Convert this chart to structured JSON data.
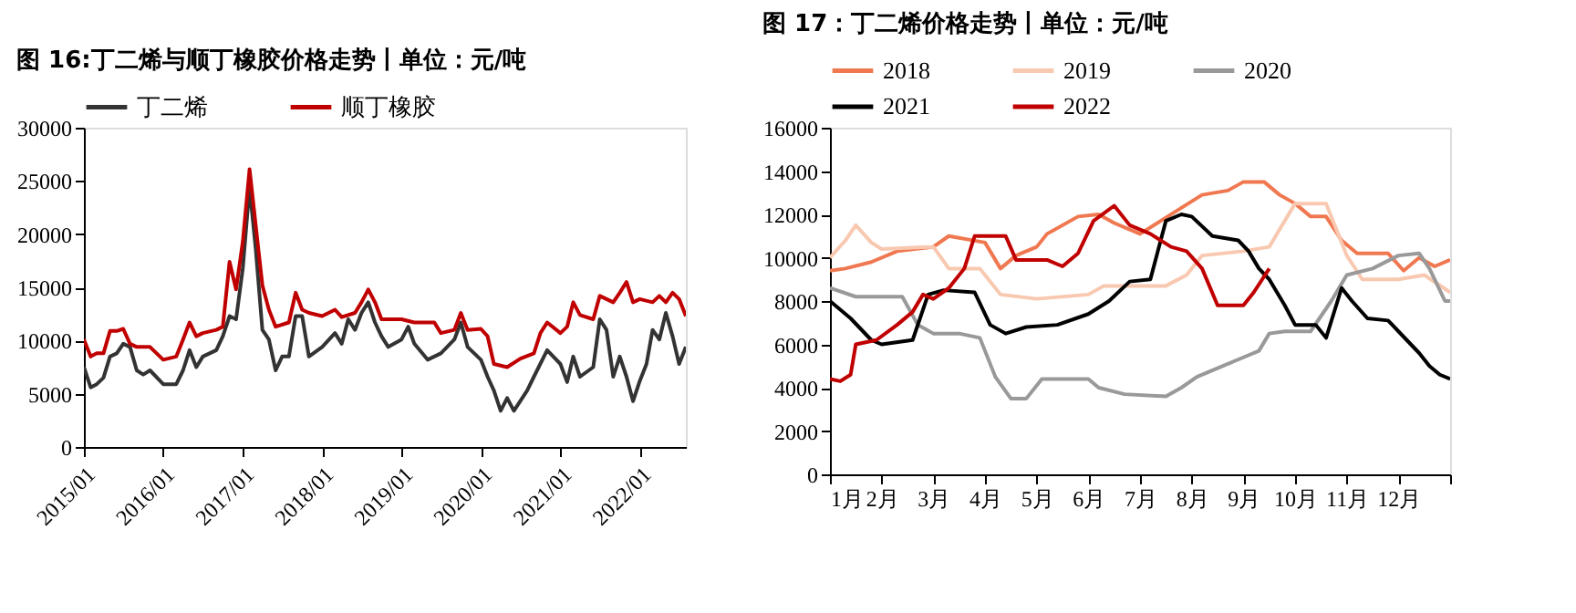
{
  "chart_data": [
    {
      "type": "line",
      "title": "图 16:丁二烯与顺丁橡胶价格走势丨单位：元/吨",
      "legend": "top",
      "grid": false,
      "marker": "none",
      "line_style": "solid",
      "xlim": [
        "2015-01",
        "2022-08"
      ],
      "xticks": [
        {
          "value": "2015-01",
          "label": "2015/01"
        },
        {
          "value": "2016-01",
          "label": "2016/01"
        },
        {
          "value": "2017-01",
          "label": "2017/01"
        },
        {
          "value": "2018-01",
          "label": "2018/01"
        },
        {
          "value": "2019-01",
          "label": "2019/01"
        },
        {
          "value": "2020-01",
          "label": "2020/01"
        },
        {
          "value": "2021-01",
          "label": "2021/01"
        },
        {
          "value": "2022-01",
          "label": "2022/01"
        }
      ],
      "ylim": [
        0,
        30000
      ],
      "yticks": [
        0,
        5000,
        10000,
        15000,
        20000,
        25000,
        30000
      ],
      "series": [
        {
          "name": "丁二烯",
          "color": "#333333",
          "x": [
            "2015-01",
            "2015-02",
            "2015-03",
            "2015-04",
            "2015-05",
            "2015-06",
            "2015-07",
            "2015-08",
            "2015-09",
            "2015-10",
            "2015-11",
            "2016-01",
            "2016-03",
            "2016-04",
            "2016-05",
            "2016-06",
            "2016-07",
            "2016-09",
            "2016-10",
            "2016-11",
            "2016-12",
            "2017-01",
            "2017-02",
            "2017-03",
            "2017-04",
            "2017-05",
            "2017-06",
            "2017-07",
            "2017-08",
            "2017-09",
            "2017-10",
            "2017-11",
            "2018-01",
            "2018-03",
            "2018-04",
            "2018-05",
            "2018-06",
            "2018-07",
            "2018-08",
            "2018-09",
            "2018-10",
            "2018-11",
            "2019-01",
            "2019-02",
            "2019-03",
            "2019-05",
            "2019-07",
            "2019-09",
            "2019-10",
            "2019-11",
            "2020-01",
            "2020-02",
            "2020-03",
            "2020-04",
            "2020-05",
            "2020-06",
            "2020-08",
            "2020-09",
            "2020-11",
            "2021-01",
            "2021-02",
            "2021-03",
            "2021-04",
            "2021-06",
            "2021-07",
            "2021-08",
            "2021-09",
            "2021-10",
            "2021-11",
            "2021-12",
            "2022-01",
            "2022-02",
            "2022-03",
            "2022-04",
            "2022-05",
            "2022-06",
            "2022-07",
            "2022-08"
          ],
          "values": [
            7500,
            5600,
            5900,
            6500,
            8500,
            8800,
            9700,
            9400,
            7200,
            6800,
            7200,
            5900,
            5900,
            7200,
            9100,
            7500,
            8500,
            9100,
            10400,
            12300,
            12000,
            16800,
            24400,
            18700,
            11000,
            10100,
            7200,
            8500,
            8500,
            12300,
            12300,
            8500,
            9400,
            10700,
            9700,
            12000,
            11000,
            12600,
            13600,
            11700,
            10400,
            9400,
            10100,
            11300,
            9700,
            8200,
            8800,
            10100,
            11700,
            9400,
            8200,
            6600,
            5300,
            3400,
            4600,
            3400,
            5300,
            6600,
            9100,
            7800,
            6100,
            8500,
            6600,
            7500,
            12000,
            11000,
            6600,
            8500,
            6600,
            4300,
            6200,
            7800,
            11000,
            10100,
            12600,
            10400,
            7800,
            9400
          ]
        },
        {
          "name": "顺丁橡胶",
          "color": "#c00000",
          "x": [
            "2015-01",
            "2015-02",
            "2015-03",
            "2015-04",
            "2015-05",
            "2015-06",
            "2015-07",
            "2015-08",
            "2015-09",
            "2015-11",
            "2016-01",
            "2016-03",
            "2016-04",
            "2016-05",
            "2016-06",
            "2016-07",
            "2016-09",
            "2016-10",
            "2016-11",
            "2016-12",
            "2017-01",
            "2017-02",
            "2017-03",
            "2017-04",
            "2017-05",
            "2017-06",
            "2017-08",
            "2017-09",
            "2017-10",
            "2017-11",
            "2018-01",
            "2018-03",
            "2018-04",
            "2018-06",
            "2018-07",
            "2018-08",
            "2018-09",
            "2018-10",
            "2019-01",
            "2019-03",
            "2019-06",
            "2019-07",
            "2019-09",
            "2019-10",
            "2019-11",
            "2020-01",
            "2020-02",
            "2020-03",
            "2020-05",
            "2020-07",
            "2020-09",
            "2020-10",
            "2020-11",
            "2021-01",
            "2021-02",
            "2021-03",
            "2021-04",
            "2021-06",
            "2021-07",
            "2021-08",
            "2021-09",
            "2021-10",
            "2021-11",
            "2021-12",
            "2022-01",
            "2022-03",
            "2022-04",
            "2022-05",
            "2022-06",
            "2022-07",
            "2022-08"
          ],
          "values": [
            10100,
            8500,
            8800,
            8800,
            10900,
            10900,
            11100,
            9700,
            9400,
            9400,
            8200,
            8500,
            10100,
            11700,
            10400,
            10700,
            11000,
            11300,
            17400,
            14800,
            19300,
            26100,
            20900,
            15200,
            12900,
            11300,
            11700,
            14500,
            12900,
            12600,
            12300,
            12900,
            12200,
            12600,
            13600,
            14800,
            13600,
            12000,
            12000,
            11700,
            11700,
            10700,
            11000,
            12600,
            11000,
            11100,
            10400,
            7800,
            7500,
            8300,
            8800,
            10700,
            11700,
            10700,
            11300,
            13600,
            12400,
            12000,
            14200,
            13900,
            13600,
            14500,
            15500,
            13600,
            13900,
            13600,
            14200,
            13600,
            14500,
            13900,
            12300
          ]
        }
      ]
    },
    {
      "type": "line",
      "title": "图 17：丁二烯价格走势丨单位：元/吨",
      "legend": "top",
      "grid": false,
      "marker": "none",
      "line_style": "solid",
      "xlim": [
        1,
        13
      ],
      "xticks": [
        {
          "value": 1,
          "label": "1月"
        },
        {
          "value": 2,
          "label": "2月"
        },
        {
          "value": 3,
          "label": "3月"
        },
        {
          "value": 4,
          "label": "4月"
        },
        {
          "value": 5,
          "label": "5月"
        },
        {
          "value": 6,
          "label": "6月"
        },
        {
          "value": 7,
          "label": "7月"
        },
        {
          "value": 8,
          "label": "8月"
        },
        {
          "value": 9,
          "label": "9月"
        },
        {
          "value": 10,
          "label": "10月"
        },
        {
          "value": 11,
          "label": "11月"
        },
        {
          "value": 12,
          "label": "12月"
        },
        {
          "value": 13,
          "label": null
        }
      ],
      "ylim": [
        0,
        16000
      ],
      "yticks": [
        0,
        2000,
        4000,
        6000,
        8000,
        10000,
        12000,
        14000,
        16000
      ],
      "series": [
        {
          "name": "2018",
          "color": "#f07850",
          "x": [
            1,
            1.3,
            1.8,
            2.3,
            3,
            3.3,
            4,
            4.3,
            4.6,
            5,
            5.2,
            5.8,
            6.2,
            6.5,
            7,
            7.4,
            7.8,
            8.2,
            8.7,
            9,
            9.4,
            9.7,
            10,
            10.3,
            10.6,
            10.9,
            11.2,
            11.8,
            12.1,
            12.4,
            12.7,
            13
          ],
          "values": [
            9400,
            9500,
            9800,
            10300,
            10500,
            11000,
            10700,
            9500,
            10100,
            10500,
            11100,
            11900,
            12000,
            11600,
            11100,
            11700,
            12300,
            12900,
            13100,
            13500,
            13500,
            12900,
            12500,
            11900,
            11900,
            10800,
            10200,
            10200,
            9400,
            10000,
            9600,
            9900
          ]
        },
        {
          "name": "2019",
          "color": "#f8c8b0",
          "x": [
            1,
            1.3,
            1.5,
            1.8,
            2,
            3,
            3.3,
            3.9,
            4.3,
            5,
            6,
            6.3,
            7,
            7.5,
            7.9,
            8.2,
            9,
            9.5,
            10,
            10.6,
            11,
            11.3,
            12,
            12.5,
            13
          ],
          "values": [
            10000,
            10800,
            11500,
            10700,
            10400,
            10500,
            9500,
            9500,
            8300,
            8100,
            8300,
            8700,
            8700,
            8700,
            9200,
            10100,
            10300,
            10500,
            12500,
            12500,
            10100,
            9000,
            9000,
            9200,
            8400
          ]
        },
        {
          "name": "2020",
          "color": "#999999",
          "x": [
            1,
            1.5,
            2,
            2.4,
            2.7,
            3,
            3.5,
            3.9,
            4.2,
            4.5,
            4.8,
            5.1,
            6,
            6.2,
            6.7,
            7.5,
            7.8,
            8.1,
            8.5,
            9,
            9.3,
            9.5,
            9.8,
            10.3,
            10.7,
            11,
            11.5,
            12,
            12.4,
            12.6,
            12.9,
            13
          ],
          "values": [
            8600,
            8200,
            8200,
            8200,
            6900,
            6500,
            6500,
            6300,
            4500,
            3500,
            3500,
            4400,
            4400,
            4000,
            3700,
            3600,
            4000,
            4500,
            4900,
            5400,
            5700,
            6500,
            6600,
            6600,
            8000,
            9200,
            9500,
            10100,
            10200,
            9500,
            8000,
            8000
          ]
        },
        {
          "name": "2021",
          "color": "#000000",
          "x": [
            1,
            1.4,
            1.8,
            2,
            2.6,
            2.9,
            3.2,
            3.8,
            4.1,
            4.4,
            4.8,
            5.4,
            6,
            6.4,
            6.8,
            7.2,
            7.5,
            7.8,
            8,
            8.4,
            8.9,
            9.1,
            9.3,
            9.5,
            9.8,
            10,
            10.4,
            10.6,
            10.9,
            11.1,
            11.4,
            11.8,
            12,
            12.4,
            12.6,
            12.8,
            13
          ],
          "values": [
            8000,
            7200,
            6200,
            6000,
            6200,
            8300,
            8500,
            8400,
            6900,
            6500,
            6800,
            6900,
            7400,
            8000,
            8900,
            9000,
            11700,
            12000,
            11900,
            11000,
            10800,
            10300,
            9500,
            9000,
            7800,
            6900,
            6900,
            6300,
            8600,
            8000,
            7200,
            7100,
            6600,
            5600,
            5000,
            4600,
            4400
          ]
        },
        {
          "name": "2022",
          "color": "#c00000",
          "x": [
            1,
            1.2,
            1.4,
            1.5,
            1.9,
            2.3,
            2.6,
            2.8,
            3,
            3.3,
            3.6,
            3.8,
            4.4,
            4.6,
            5.2,
            5.5,
            5.8,
            6.1,
            6.5,
            6.8,
            7.2,
            7.6,
            7.9,
            8.2,
            8.5,
            9,
            9.2,
            9.5
          ],
          "values": [
            4400,
            4300,
            4600,
            6000,
            6200,
            6900,
            7500,
            8300,
            8100,
            8600,
            9500,
            11000,
            11000,
            9900,
            9900,
            9600,
            10200,
            11700,
            12400,
            11500,
            11100,
            10500,
            10300,
            9500,
            7800,
            7800,
            8400,
            9500
          ]
        }
      ]
    }
  ]
}
